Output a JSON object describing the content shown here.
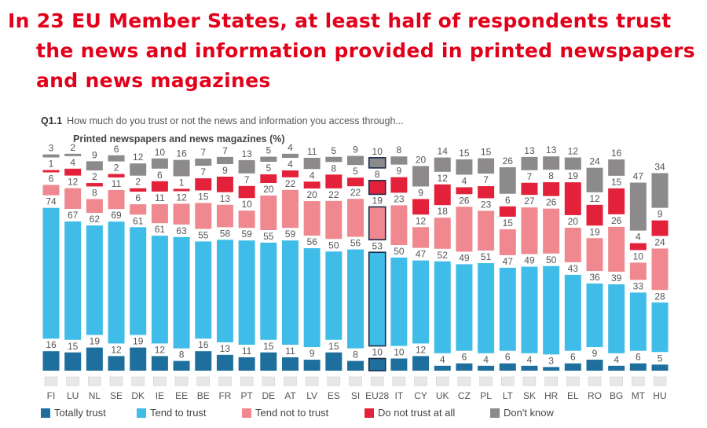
{
  "headline": {
    "line1": "In 23 EU Member States, at least half of respondents trust",
    "line2": "the news and information provided in printed newspapers",
    "line3": "and news magazines"
  },
  "question": {
    "code": "Q1.1",
    "text": "How much do you trust or not the news and information you access through..."
  },
  "colors": {
    "totally_trust": "#1f6f9e",
    "tend_to_trust": "#3fbde8",
    "tend_not_to_trust": "#f08890",
    "do_not_trust": "#e3213a",
    "dont_know": "#8c8a8a"
  },
  "chart_data": {
    "type": "bar",
    "stacked": true,
    "subtitle": "Printed newspapers and news magazines (%)",
    "categories": [
      "FI",
      "LU",
      "NL",
      "SE",
      "DK",
      "IE",
      "EE",
      "BE",
      "FR",
      "PT",
      "DE",
      "AT",
      "LV",
      "ES",
      "SI",
      "EU28",
      "IT",
      "CY",
      "UK",
      "CZ",
      "PL",
      "LT",
      "SK",
      "HR",
      "EL",
      "RO",
      "BG",
      "MT",
      "HU"
    ],
    "highlight": "EU28",
    "series": [
      {
        "name": "Totally trust",
        "values": [
          16,
          15,
          19,
          12,
          19,
          12,
          8,
          16,
          13,
          11,
          15,
          11,
          9,
          15,
          8,
          10,
          10,
          12,
          4,
          6,
          4,
          6,
          4,
          3,
          6,
          9,
          4,
          6,
          5
        ]
      },
      {
        "name": "Tend to trust",
        "values": [
          74,
          67,
          62,
          69,
          61,
          61,
          63,
          55,
          58,
          59,
          55,
          59,
          56,
          50,
          56,
          53,
          50,
          47,
          52,
          49,
          51,
          47,
          49,
          50,
          43,
          36,
          39,
          33,
          28
        ]
      },
      {
        "name": "Tend not to trust",
        "values": [
          6,
          12,
          8,
          11,
          6,
          11,
          12,
          15,
          13,
          10,
          20,
          22,
          20,
          22,
          22,
          19,
          23,
          12,
          18,
          26,
          23,
          15,
          27,
          26,
          20,
          19,
          26,
          10,
          24
        ]
      },
      {
        "name": "Do not trust at all",
        "values": [
          1,
          4,
          2,
          2,
          2,
          6,
          1,
          7,
          9,
          7,
          5,
          4,
          4,
          8,
          5,
          8,
          9,
          9,
          12,
          4,
          7,
          6,
          7,
          8,
          19,
          12,
          15,
          4,
          9
        ]
      },
      {
        "name": "Don't know",
        "values": [
          3,
          2,
          9,
          6,
          12,
          10,
          16,
          7,
          7,
          13,
          5,
          4,
          11,
          5,
          9,
          10,
          8,
          20,
          14,
          15,
          15,
          26,
          13,
          13,
          12,
          24,
          16,
          47,
          34
        ]
      }
    ],
    "legend": [
      "Totally trust",
      "Tend to trust",
      "Tend not to trust",
      "Do not trust at all",
      "Don't know"
    ]
  }
}
